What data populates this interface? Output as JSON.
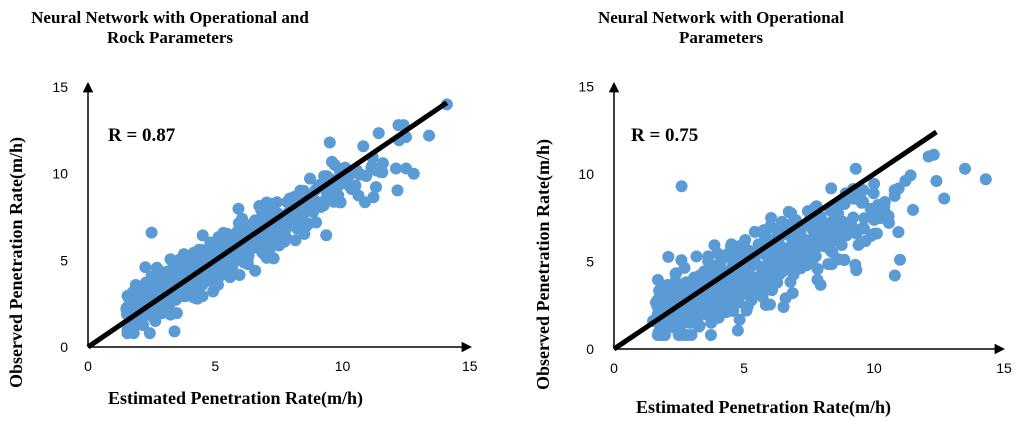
{
  "chart_data": [
    {
      "type": "scatter",
      "title": "Neural Network with Operational and Rock Parameters",
      "xlabel": "Estimated Penetration Rate(m/h)",
      "ylabel": "Observed Penetration Rate(m/h)",
      "xlim": [
        0,
        15
      ],
      "ylim": [
        0,
        15
      ],
      "xticks": [
        "0",
        "5",
        "10",
        "15"
      ],
      "yticks": [
        "0",
        "5",
        "10",
        "15"
      ],
      "annotation": "R = 0.87",
      "r": 0.87,
      "fit_line": {
        "x": [
          0,
          14.1
        ],
        "y": [
          0,
          14.1
        ]
      },
      "highlight_points": [
        {
          "x": 14.1,
          "y": 14.0
        },
        {
          "x": 12.2,
          "y": 12.8
        },
        {
          "x": 12.4,
          "y": 12.8
        },
        {
          "x": 13.4,
          "y": 12.2
        },
        {
          "x": 9.5,
          "y": 11.8
        },
        {
          "x": 9.7,
          "y": 10.5
        },
        {
          "x": 11.5,
          "y": 10.1
        },
        {
          "x": 12.1,
          "y": 10.3
        },
        {
          "x": 12.5,
          "y": 10.3
        },
        {
          "x": 12.8,
          "y": 10.0
        },
        {
          "x": 3.4,
          "y": 0.9
        },
        {
          "x": 2.5,
          "y": 6.6
        },
        {
          "x": 1.6,
          "y": 1.3
        }
      ],
      "cloud": {
        "x_range": [
          1.5,
          12.5
        ],
        "n": 560,
        "slope": 0.87,
        "spread": 0.75
      },
      "point_color": "#5b9bd5",
      "line_color": "#000000",
      "grid": false
    },
    {
      "type": "scatter",
      "title": "Neural Network with Operational Parameters",
      "xlabel": "Estimated Penetration Rate(m/h)",
      "ylabel": "Observed Penetration Rate(m/h)",
      "xlim": [
        0,
        15
      ],
      "ylim": [
        0,
        15
      ],
      "xticks": [
        "0",
        "5",
        "10",
        "15"
      ],
      "yticks": [
        "0",
        "5",
        "10",
        "15"
      ],
      "annotation": "R = 0.75",
      "r": 0.75,
      "fit_line": {
        "x": [
          0,
          12.4
        ],
        "y": [
          0,
          12.4
        ]
      },
      "highlight_points": [
        {
          "x": 14.3,
          "y": 9.7
        },
        {
          "x": 13.5,
          "y": 10.3
        },
        {
          "x": 12.3,
          "y": 11.1
        },
        {
          "x": 12.1,
          "y": 11.0
        },
        {
          "x": 12.7,
          "y": 8.6
        },
        {
          "x": 12.4,
          "y": 9.6
        },
        {
          "x": 10.8,
          "y": 4.2
        },
        {
          "x": 11.0,
          "y": 5.1
        },
        {
          "x": 2.6,
          "y": 9.3
        },
        {
          "x": 6.6,
          "y": 2.9
        },
        {
          "x": 2.6,
          "y": 1.4
        },
        {
          "x": 1.5,
          "y": 1.6
        },
        {
          "x": 9.3,
          "y": 10.3
        }
      ],
      "cloud": {
        "x_range": [
          1.6,
          12.0
        ],
        "n": 520,
        "slope": 0.72,
        "spread": 1.1
      },
      "point_color": "#5b9bd5",
      "line_color": "#000000",
      "grid": false
    }
  ]
}
